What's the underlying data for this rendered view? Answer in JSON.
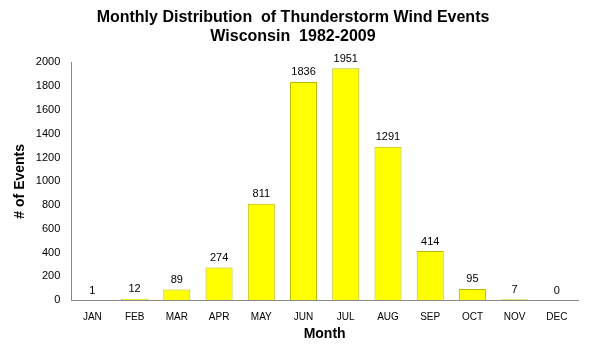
{
  "chart_data": {
    "type": "bar",
    "title": [
      "Monthly Distribution  of Thunderstorm Wind Events",
      "Wisconsin  1982-2009"
    ],
    "x_label": "Month",
    "y_label": "# of Events",
    "categories": [
      "JAN",
      "FEB",
      "MAR",
      "APR",
      "MAY",
      "JUN",
      "JUL",
      "AUG",
      "SEP",
      "OCT",
      "NOV",
      "DEC"
    ],
    "values": [
      1,
      12,
      89,
      274,
      811,
      1836,
      1951,
      1291,
      414,
      95,
      7,
      0
    ],
    "color": "#ffff00",
    "ylim": [
      0,
      2000
    ],
    "yticks": [
      0,
      200,
      400,
      600,
      800,
      1000,
      1200,
      1400,
      1600,
      1800,
      2000
    ],
    "grid": false,
    "data_labels": true
  }
}
